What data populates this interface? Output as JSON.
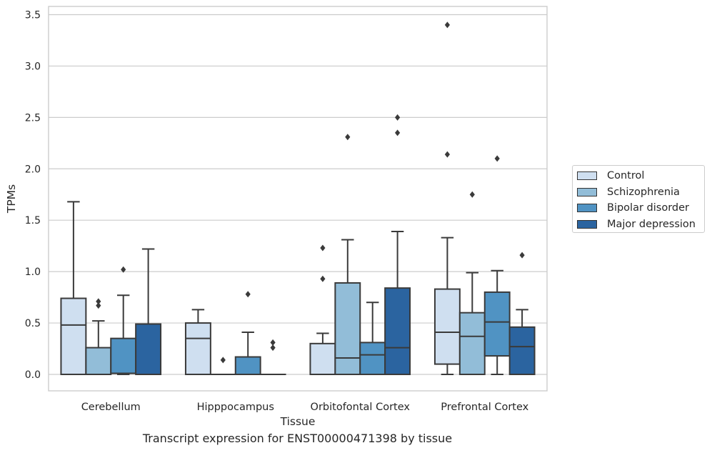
{
  "chart_data": {
    "type": "box",
    "xlabel": "Tissue",
    "ylabel": "TPMs",
    "caption": "Transcript expression for ENST00000471398 by tissue",
    "categories": [
      "Cerebellum",
      "Hipppocampus",
      "Orbitofontal Cortex",
      "Prefrontal Cortex"
    ],
    "ylim": [
      -0.16,
      3.58
    ],
    "yticks": [
      0.0,
      0.5,
      1.0,
      1.5,
      2.0,
      2.5,
      3.0,
      3.5
    ],
    "ytick_labels": [
      "0.0",
      "0.5",
      "1.0",
      "1.5",
      "2.0",
      "2.5",
      "3.0",
      "3.5"
    ],
    "grid": "horizontal",
    "legend_position": "right",
    "series": [
      {
        "name": "Control",
        "color": "#cfdff0",
        "boxes": [
          {
            "q1": 0.0,
            "median": 0.48,
            "q3": 0.74,
            "whislo": 0.0,
            "whishi": 1.68,
            "fliers": []
          },
          {
            "q1": 0.0,
            "median": 0.35,
            "q3": 0.5,
            "whislo": 0.0,
            "whishi": 0.63,
            "fliers": []
          },
          {
            "q1": 0.0,
            "median": 0.0,
            "q3": 0.3,
            "whislo": 0.0,
            "whishi": 0.4,
            "fliers": [
              0.93,
              1.23
            ]
          },
          {
            "q1": 0.1,
            "median": 0.41,
            "q3": 0.83,
            "whislo": 0.0,
            "whishi": 1.33,
            "fliers": [
              2.14,
              3.4
            ]
          }
        ]
      },
      {
        "name": "Schizophrenia",
        "color": "#92bdd8",
        "boxes": [
          {
            "q1": 0.0,
            "median": 0.0,
            "q3": 0.26,
            "whislo": 0.0,
            "whishi": 0.52,
            "fliers": [
              0.67,
              0.71
            ]
          },
          {
            "q1": 0.0,
            "median": 0.0,
            "q3": 0.0,
            "whislo": 0.0,
            "whishi": 0.0,
            "fliers": [
              0.14
            ]
          },
          {
            "q1": 0.0,
            "median": 0.16,
            "q3": 0.89,
            "whislo": 0.0,
            "whishi": 1.31,
            "fliers": [
              2.31
            ]
          },
          {
            "q1": 0.0,
            "median": 0.37,
            "q3": 0.6,
            "whislo": 0.0,
            "whishi": 0.99,
            "fliers": [
              1.75
            ]
          }
        ]
      },
      {
        "name": "Bipolar disorder",
        "color": "#5093c3",
        "boxes": [
          {
            "q1": 0.01,
            "median": 0.01,
            "q3": 0.35,
            "whislo": 0.0,
            "whishi": 0.77,
            "fliers": [
              1.02
            ]
          },
          {
            "q1": 0.0,
            "median": 0.0,
            "q3": 0.17,
            "whislo": 0.0,
            "whishi": 0.41,
            "fliers": [
              0.78
            ]
          },
          {
            "q1": 0.0,
            "median": 0.19,
            "q3": 0.31,
            "whislo": 0.0,
            "whishi": 0.7,
            "fliers": []
          },
          {
            "q1": 0.18,
            "median": 0.51,
            "q3": 0.8,
            "whislo": 0.0,
            "whishi": 1.01,
            "fliers": [
              2.1
            ]
          }
        ]
      },
      {
        "name": "Major depression",
        "color": "#2b64a0",
        "boxes": [
          {
            "q1": 0.0,
            "median": 0.0,
            "q3": 0.49,
            "whislo": 0.0,
            "whishi": 1.22,
            "fliers": []
          },
          {
            "q1": 0.0,
            "median": 0.0,
            "q3": 0.0,
            "whislo": 0.0,
            "whishi": 0.0,
            "fliers": [
              0.26,
              0.31
            ]
          },
          {
            "q1": 0.0,
            "median": 0.26,
            "q3": 0.84,
            "whislo": 0.0,
            "whishi": 1.39,
            "fliers": [
              2.35,
              2.5
            ]
          },
          {
            "q1": 0.0,
            "median": 0.27,
            "q3": 0.46,
            "whislo": 0.0,
            "whishi": 0.63,
            "fliers": [
              1.16
            ]
          }
        ]
      }
    ]
  }
}
